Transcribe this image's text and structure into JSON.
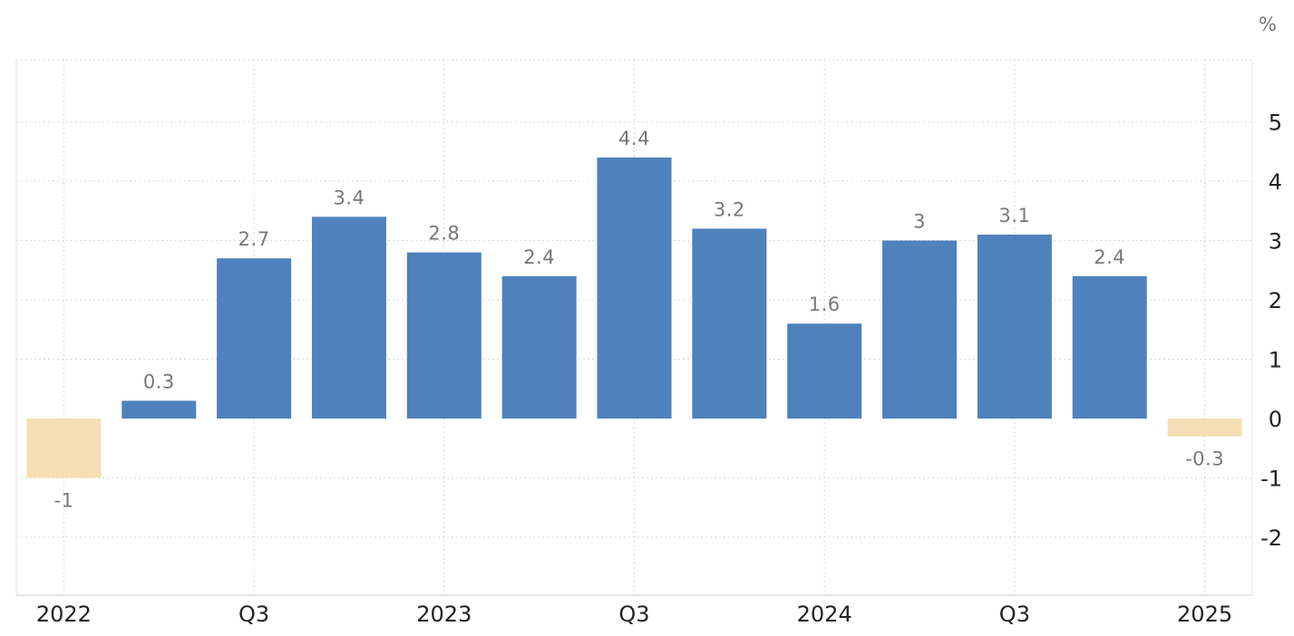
{
  "chart_data": {
    "type": "bar",
    "unit_label": "%",
    "categories": [
      "2022 Q1",
      "2022 Q2",
      "2022 Q3",
      "2022 Q4",
      "2023 Q1",
      "2023 Q2",
      "2023 Q3",
      "2023 Q4",
      "2024 Q1",
      "2024 Q2",
      "2024 Q3",
      "2024 Q4",
      "2025 Q1"
    ],
    "values": [
      -1,
      0.3,
      2.7,
      3.4,
      2.8,
      2.4,
      4.4,
      3.2,
      1.6,
      3,
      3.1,
      2.4,
      -0.3
    ],
    "value_labels": [
      "-1",
      "0.3",
      "2.7",
      "3.4",
      "2.8",
      "2.4",
      "4.4",
      "3.2",
      "1.6",
      "3",
      "3.1",
      "2.4",
      "-0.3"
    ],
    "x_tick_labels": [
      {
        "index": 0,
        "label": "2022"
      },
      {
        "index": 2,
        "label": "Q3"
      },
      {
        "index": 4,
        "label": "2023"
      },
      {
        "index": 6,
        "label": "Q3"
      },
      {
        "index": 8,
        "label": "2024"
      },
      {
        "index": 10,
        "label": "Q3"
      },
      {
        "index": 12,
        "label": "2025"
      }
    ],
    "y_ticks": [
      5,
      4,
      3,
      2,
      1,
      0,
      -1,
      -2
    ],
    "ylim": [
      -3,
      6
    ],
    "grid": true,
    "y_axis_position": "right",
    "colors": {
      "positive": "#4f81bd",
      "negative": "#f5deb3",
      "grid": "#d9d9d9",
      "label": "#777777",
      "tick": "#222222"
    }
  }
}
